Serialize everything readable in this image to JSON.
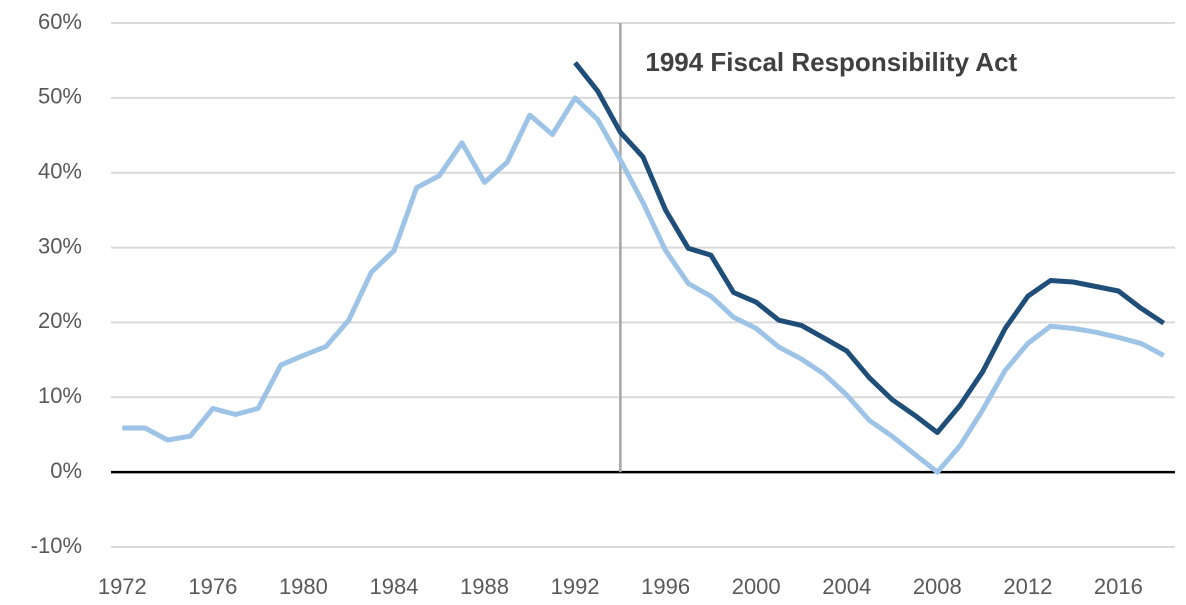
{
  "chart_data": {
    "type": "line",
    "annotations": [
      {
        "text": "1994 Fiscal Responsibility Act",
        "x": 1994
      }
    ],
    "x": [
      1972,
      1973,
      1974,
      1975,
      1976,
      1977,
      1978,
      1979,
      1980,
      1981,
      1982,
      1983,
      1984,
      1985,
      1986,
      1987,
      1988,
      1989,
      1990,
      1991,
      1992,
      1993,
      1994,
      1995,
      1996,
      1997,
      1998,
      1999,
      2000,
      2001,
      2002,
      2003,
      2004,
      2005,
      2006,
      2007,
      2008,
      2009,
      2010,
      2011,
      2012,
      2013,
      2014,
      2015,
      2016,
      2017,
      2018
    ],
    "series": [
      {
        "color": "#9dc3e6",
        "values": [
          5.9,
          5.9,
          4.3,
          4.8,
          8.5,
          7.7,
          8.5,
          14.3,
          15.6,
          16.8,
          20.3,
          26.7,
          29.6,
          38.0,
          39.6,
          44.0,
          38.7,
          41.4,
          47.7,
          45.1,
          50.0,
          47.1,
          41.7,
          36.0,
          29.6,
          25.2,
          23.5,
          20.7,
          19.2,
          16.7,
          15.1,
          13.1,
          10.3,
          6.9,
          4.8,
          2.4,
          0,
          3.5,
          8.3,
          13.6,
          17.2,
          19.5,
          19.2,
          18.7,
          18.0,
          17.2,
          15.6
        ]
      },
      {
        "color": "#1f4e79",
        "values": [
          null,
          null,
          null,
          null,
          null,
          null,
          null,
          null,
          null,
          null,
          null,
          null,
          null,
          null,
          null,
          null,
          null,
          null,
          null,
          null,
          54.7,
          50.9,
          45.4,
          42.1,
          35.0,
          29.9,
          29.0,
          24.0,
          22.7,
          20.3,
          19.6,
          17.9,
          16.2,
          12.6,
          9.7,
          7.6,
          5.3,
          8.9,
          13.4,
          19.2,
          23.5,
          25.6,
          25.4,
          24.8,
          24.2,
          21.9,
          19.9
        ]
      }
    ],
    "xlim": [
      1971.5,
      2018.5
    ],
    "xticks": [
      1972,
      1976,
      1980,
      1984,
      1988,
      1992,
      1996,
      2000,
      2004,
      2008,
      2012,
      2016
    ],
    "ylim": [
      -10,
      60
    ],
    "yticks": [
      {
        "value": -10,
        "label": "-10%"
      },
      {
        "value": 0,
        "label": "0%"
      },
      {
        "value": 10,
        "label": "10%"
      },
      {
        "value": 20,
        "label": "20%"
      },
      {
        "value": 30,
        "label": "30%"
      },
      {
        "value": 40,
        "label": "40%"
      },
      {
        "value": 50,
        "label": "50%"
      },
      {
        "value": 60,
        "label": "60%"
      }
    ],
    "grid": true
  }
}
